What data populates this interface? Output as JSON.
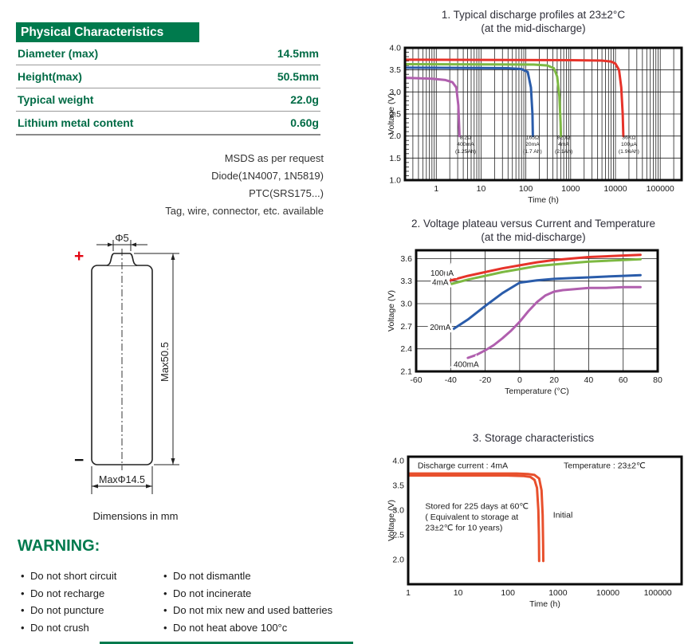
{
  "colors": {
    "brand_green": "#007a4d",
    "accent_red": "#e30613",
    "chart_red": "#e6332a",
    "chart_green": "#7db942",
    "chart_blue": "#2a5caa",
    "chart_purple": "#b05fae",
    "chart_orange": "#e8502d"
  },
  "physical_characteristics": {
    "title": "Physical Characteristics",
    "rows": [
      {
        "label": "Diameter (max)",
        "value": "14.5mm"
      },
      {
        "label": "Height(max)",
        "value": "50.5mm"
      },
      {
        "label": "Typical weight",
        "value": "22.0g"
      },
      {
        "label": "Lithium metal content",
        "value": "0.60g"
      }
    ]
  },
  "options_notes": {
    "lines": [
      "MSDS as per request",
      "Diode(1N4007, 1N5819)",
      "PTC(SRS175...)",
      "Tag, wire, connector, etc. available"
    ]
  },
  "dimension_drawing": {
    "plus": "+",
    "minus": "−",
    "top_diameter": "Φ5",
    "height": "Max50.5",
    "diameter": "MaxΦ14.5",
    "caption": "Dimensions in mm"
  },
  "warning": {
    "title": "WARNING:",
    "column1": [
      "Do not short circuit",
      "Do not recharge",
      "Do not puncture",
      "Do not crush"
    ],
    "column2": [
      "Do not dismantle",
      "Do not incinerate",
      "Do not mix new and used batteries",
      "Do not heat above 100°c"
    ]
  },
  "chart_data": [
    {
      "type": "line",
      "title": "1. Typical discharge profiles at 23±2°C",
      "subtitle": "(at  the mid-discharge)",
      "xlabel": "Time (h)",
      "ylabel": "Voltage (V)",
      "x_scale": "log",
      "xlim": [
        0.2,
        300000
      ],
      "ylim": [
        1.0,
        4.0
      ],
      "x_ticks": [
        1,
        10,
        100,
        1000,
        10000,
        100000
      ],
      "x_tick_labels": [
        "1",
        "10",
        "100",
        "1000",
        "10000",
        "100000"
      ],
      "y_ticks": [
        1.0,
        1.5,
        2.0,
        2.5,
        3.0,
        3.5,
        4.0
      ],
      "y_tick_labels": [
        "1.0",
        "1.5",
        "2.0",
        "2.5",
        "3.0",
        "3.5",
        "4.0"
      ],
      "grid_x": "log-minor",
      "grid_y": [
        1.5,
        2.0,
        2.5,
        3.0,
        3.5
      ],
      "y_minor_step": 0.1,
      "series": [
        {
          "name": "36KΩ 100μA (1.96Ah)",
          "color": "#e6332a",
          "points": [
            [
              0.2,
              3.73
            ],
            [
              1000,
              3.72
            ],
            [
              5000,
              3.71
            ],
            [
              8000,
              3.69
            ],
            [
              10000,
              3.64
            ],
            [
              12000,
              3.5
            ],
            [
              13500,
              3.1
            ],
            [
              14500,
              2.5
            ],
            [
              15000,
              2.0
            ]
          ]
        },
        {
          "name": "820Ω 4mA (2.1Ah)",
          "color": "#7db942",
          "points": [
            [
              0.2,
              3.63
            ],
            [
              150,
              3.62
            ],
            [
              300,
              3.6
            ],
            [
              420,
              3.54
            ],
            [
              500,
              3.35
            ],
            [
              560,
              2.9
            ],
            [
              595,
              2.3
            ],
            [
              605,
              2.0
            ]
          ]
        },
        {
          "name": "165Ω 20mA (1.7 Ah)",
          "color": "#2a5caa",
          "points": [
            [
              0.2,
              3.55
            ],
            [
              40,
              3.54
            ],
            [
              80,
              3.52
            ],
            [
              110,
              3.45
            ],
            [
              130,
              3.1
            ],
            [
              140,
              2.5
            ],
            [
              143,
              2.0
            ]
          ]
        },
        {
          "name": "8.2Ω 400mA (1.25Ah)",
          "color": "#b05fae",
          "points": [
            [
              0.2,
              3.32
            ],
            [
              0.8,
              3.3
            ],
            [
              1.6,
              3.27
            ],
            [
              2.3,
              3.22
            ],
            [
              2.8,
              3.1
            ],
            [
              3.1,
              2.7
            ],
            [
              3.25,
              2.2
            ],
            [
              3.3,
              2.0
            ]
          ]
        }
      ],
      "annotations": [
        {
          "text": "8.2Ω\n400mA\n(1.25Ah)",
          "x": 4.5,
          "y": 1.93,
          "size": 6.8,
          "anchor": "middle"
        },
        {
          "text": "165Ω\n20mA\n(1.7 Ah)",
          "x": 140,
          "y": 1.93,
          "size": 6.8,
          "anchor": "middle"
        },
        {
          "text": "820Ω\n4mA\n(2.1Ah)",
          "x": 700,
          "y": 1.93,
          "size": 6.8,
          "anchor": "middle"
        },
        {
          "text": "36KΩ\n100μA\n(1.96Ah)",
          "x": 20000,
          "y": 1.93,
          "size": 6.8,
          "anchor": "middle"
        }
      ]
    },
    {
      "type": "line",
      "title": "2. Voltage plateau versus Current and Temperature",
      "subtitle": "(at the mid-discharge)",
      "xlabel": "Temperature (°C)",
      "ylabel": "Voltage (V)",
      "x_scale": "linear",
      "xlim": [
        -60,
        80
      ],
      "ylim": [
        2.1,
        3.71
      ],
      "x_ticks": [
        -60,
        -40,
        -20,
        0,
        20,
        40,
        60,
        80
      ],
      "x_tick_labels": [
        "-60",
        "-40",
        "-20",
        "0",
        "20",
        "40",
        "60",
        "80"
      ],
      "y_ticks": [
        2.1,
        2.4,
        2.7,
        3.0,
        3.3,
        3.6
      ],
      "y_tick_labels": [
        "2.1",
        "2.4",
        "2.7",
        "3.0",
        "3.3",
        "3.6"
      ],
      "grid_x": [
        -40,
        -20,
        0,
        20,
        40,
        60
      ],
      "grid_y": [
        2.4,
        2.7,
        3.0,
        3.3,
        3.6
      ],
      "series": [
        {
          "name": "100μA",
          "color": "#e6332a",
          "points": [
            [
              -40,
              3.31
            ],
            [
              -30,
              3.37
            ],
            [
              -20,
              3.42
            ],
            [
              -10,
              3.47
            ],
            [
              0,
              3.51
            ],
            [
              10,
              3.55
            ],
            [
              20,
              3.58
            ],
            [
              30,
              3.6
            ],
            [
              40,
              3.62
            ],
            [
              50,
              3.63
            ],
            [
              60,
              3.64
            ],
            [
              70,
              3.65
            ]
          ]
        },
        {
          "name": "4mA",
          "color": "#7db942",
          "points": [
            [
              -40,
              3.26
            ],
            [
              -30,
              3.32
            ],
            [
              -20,
              3.37
            ],
            [
              -10,
              3.42
            ],
            [
              0,
              3.46
            ],
            [
              10,
              3.5
            ],
            [
              20,
              3.52
            ],
            [
              30,
              3.54
            ],
            [
              40,
              3.56
            ],
            [
              50,
              3.57
            ],
            [
              60,
              3.58
            ],
            [
              70,
              3.59
            ]
          ]
        },
        {
          "name": "20mA",
          "color": "#2a5caa",
          "points": [
            [
              -40,
              2.64
            ],
            [
              -30,
              2.79
            ],
            [
              -20,
              2.97
            ],
            [
              -10,
              3.14
            ],
            [
              0,
              3.28
            ],
            [
              10,
              3.31
            ],
            [
              20,
              3.33
            ],
            [
              30,
              3.34
            ],
            [
              40,
              3.35
            ],
            [
              50,
              3.36
            ],
            [
              60,
              3.37
            ],
            [
              70,
              3.38
            ]
          ]
        },
        {
          "name": "400mA",
          "color": "#b05fae",
          "points": [
            [
              -30,
              2.28
            ],
            [
              -25,
              2.32
            ],
            [
              -20,
              2.38
            ],
            [
              -15,
              2.45
            ],
            [
              -10,
              2.54
            ],
            [
              -5,
              2.64
            ],
            [
              0,
              2.76
            ],
            [
              5,
              2.9
            ],
            [
              10,
              3.02
            ],
            [
              15,
              3.11
            ],
            [
              20,
              3.16
            ],
            [
              25,
              3.18
            ],
            [
              30,
              3.19
            ],
            [
              40,
              3.21
            ],
            [
              50,
              3.21
            ],
            [
              60,
              3.22
            ],
            [
              70,
              3.22
            ]
          ]
        }
      ],
      "annotations": [
        {
          "text": "100μA",
          "x": -45,
          "y": 3.37,
          "size": 10,
          "anchor": "middle",
          "halo": true
        },
        {
          "text": "4mA",
          "x": -46,
          "y": 3.25,
          "size": 10,
          "anchor": "middle",
          "halo": true
        },
        {
          "text": "20mA",
          "x": -46,
          "y": 2.65,
          "size": 10,
          "anchor": "middle",
          "halo": true
        },
        {
          "text": "400mA",
          "x": -31,
          "y": 2.16,
          "size": 10,
          "anchor": "middle",
          "halo": true
        }
      ]
    },
    {
      "type": "line",
      "title": "3. Storage characteristics",
      "subtitle": "",
      "xlabel": "Time (h)",
      "ylabel": "Voltage (V)",
      "x_scale": "log",
      "xlim": [
        1,
        300000
      ],
      "ylim": [
        1.5,
        4.08
      ],
      "x_ticks": [
        1,
        10,
        100,
        1000,
        10000,
        100000
      ],
      "x_tick_labels": [
        "1",
        "10",
        "100",
        "1000",
        "10000",
        "100000"
      ],
      "y_ticks": [
        2.0,
        2.5,
        3.0,
        3.5,
        4.0
      ],
      "y_tick_labels": [
        "2.0",
        "2.5",
        "3.0",
        "3.5",
        "4.0"
      ],
      "series": [
        {
          "name": "Stored for 225 days at 60℃",
          "color": "#e8502d",
          "points": [
            [
              1,
              3.7
            ],
            [
              100,
              3.7
            ],
            [
              200,
              3.69
            ],
            [
              280,
              3.67
            ],
            [
              340,
              3.61
            ],
            [
              380,
              3.45
            ],
            [
              405,
              3.0
            ],
            [
              415,
              2.5
            ],
            [
              420,
              1.97
            ]
          ]
        },
        {
          "name": "Initial",
          "color": "#e8502d",
          "points": [
            [
              1,
              3.74
            ],
            [
              150,
              3.74
            ],
            [
              250,
              3.73
            ],
            [
              340,
              3.71
            ],
            [
              420,
              3.64
            ],
            [
              470,
              3.4
            ],
            [
              495,
              2.9
            ],
            [
              505,
              2.3
            ],
            [
              508,
              1.97
            ]
          ]
        }
      ],
      "annotations": [
        {
          "text": "Discharge current : 4mA",
          "x": 1.55,
          "y": 3.85,
          "size": 10.5,
          "anchor": "start"
        },
        {
          "text": "Temperature : 23±2℃",
          "x": 1300,
          "y": 3.85,
          "size": 10.5,
          "anchor": "start"
        },
        {
          "text": "Stored for 225 days at 60℃\n( Equivalent to storage at\n23±2℃ for 10 years)",
          "x": 2.2,
          "y": 3.02,
          "size": 10.5,
          "anchor": "start"
        },
        {
          "text": "Initial",
          "x": 800,
          "y": 2.85,
          "size": 10.5,
          "anchor": "start"
        }
      ]
    }
  ]
}
